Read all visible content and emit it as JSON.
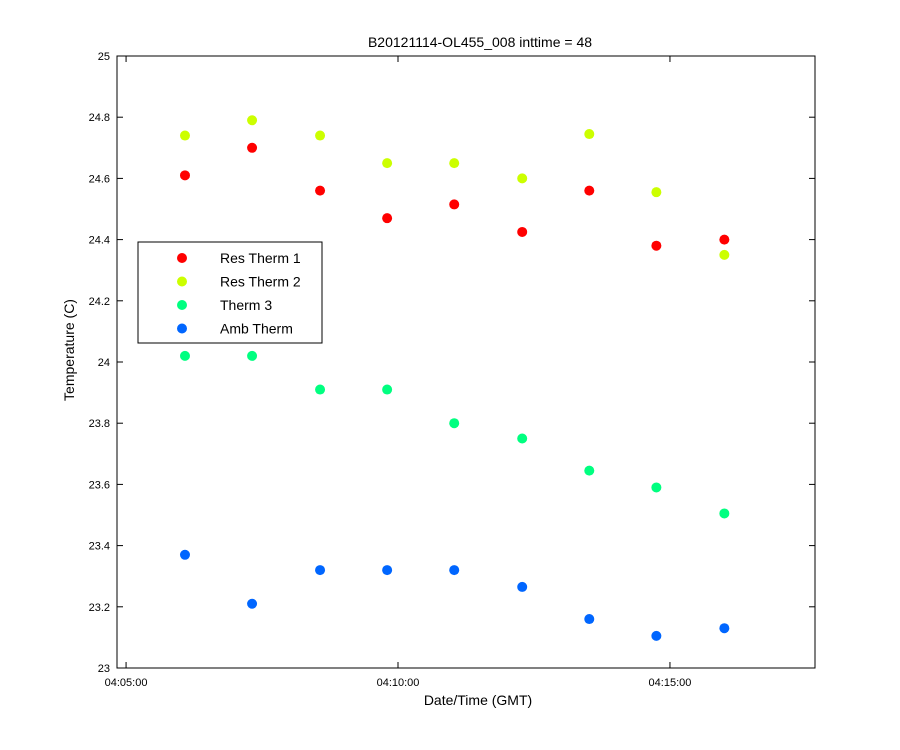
{
  "chart_data": {
    "type": "scatter",
    "title": "B20121114-OL455_008 inttime = 48",
    "xlabel": "Date/Time (GMT)",
    "ylabel": "Temperature (C)",
    "x_ticks": [
      "04:05:00",
      "04:10:00",
      "04:15:00"
    ],
    "y_ticks": [
      "23",
      "23.2",
      "23.4",
      "23.6",
      "23.8",
      "24",
      "24.2",
      "24.4",
      "24.6",
      "24.8",
      "25"
    ],
    "xlim": [
      "04:04:50",
      "04:17:40"
    ],
    "ylim": [
      23,
      25
    ],
    "grid": false,
    "legend_position": "left-center",
    "x": [
      "04:06:05",
      "04:07:19",
      "04:08:34",
      "04:09:48",
      "04:11:02",
      "04:12:17",
      "04:13:31",
      "04:14:45",
      "04:16:00"
    ],
    "series": [
      {
        "name": "Res Therm 1",
        "color": "#ff0000",
        "values": [
          24.61,
          24.7,
          24.56,
          24.47,
          24.515,
          24.425,
          24.56,
          24.38,
          24.4
        ]
      },
      {
        "name": "Res Therm 2",
        "color": "#ccff00",
        "values": [
          24.74,
          24.79,
          24.74,
          24.65,
          24.65,
          24.6,
          24.745,
          24.555,
          24.35
        ]
      },
      {
        "name": "Therm 3",
        "color": "#00ff80",
        "values": [
          24.02,
          24.02,
          23.91,
          23.91,
          23.8,
          23.75,
          23.645,
          23.59,
          23.505
        ]
      },
      {
        "name": "Amb Therm",
        "color": "#0066ff",
        "values": [
          23.37,
          23.21,
          23.32,
          23.32,
          23.32,
          23.265,
          23.16,
          23.105,
          23.13
        ]
      }
    ]
  }
}
